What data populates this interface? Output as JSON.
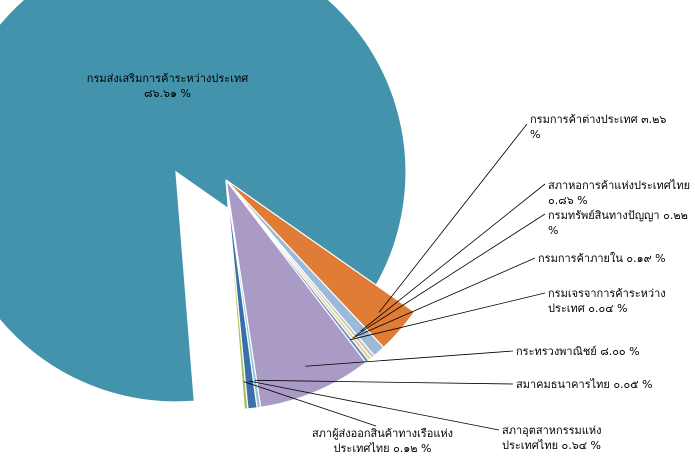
{
  "chart_data": {
    "type": "pie",
    "title": "",
    "exploded": true,
    "slices": [
      {
        "label": "กรมส่งเสริมการค้าระหว่างประเทศ",
        "value": 86.61,
        "value_text": "๘๖.๖๑ %",
        "color": "#4393AC"
      },
      {
        "label": "กรมการค้าต่างประเทศ",
        "value": 3.26,
        "value_text": "๓.๒๖ %",
        "color": "#E07C35"
      },
      {
        "label": "สภาหอการค้าแห่งประเทศไทย",
        "value": 0.86,
        "value_text": "๐.๘๖ %",
        "color": "#9CB9DA"
      },
      {
        "label": "กรมทรัพย์สินทางปัญญา",
        "value": 0.22,
        "value_text": "๐.๒๒ %",
        "color": "#C4C4C4"
      },
      {
        "label": "กรมการค้าภายใน",
        "value": 0.19,
        "value_text": "๐.๑๙ %",
        "color": "#E4D28C"
      },
      {
        "label": "กรมเจรจาการค้าระหว่างประเทศ",
        "value": 0.04,
        "value_text": "๐.๐๔ %",
        "color": "#6F8FBF"
      },
      {
        "label": "กระทรวงพาณิชย์",
        "value": 8.0,
        "value_text": "๘.๐๐ %",
        "color": "#A99BC6"
      },
      {
        "label": "สมาคมธนาคารไทย",
        "value": 0.05,
        "value_text": "๐.๐๕ %",
        "color": "#8FC4D8"
      },
      {
        "label": "สภาอุตสาหกรรมแห่งประเทศไทย",
        "value": 0.64,
        "value_text": "๐.๖๔ %",
        "color": "#3A6FA9"
      },
      {
        "label": "สภาผู้ส่งออกสินค้าทางเรือแห่งประเทศไทย",
        "value": 0.12,
        "value_text": "๐.๑๒ %",
        "color": "#A9C25A"
      }
    ]
  }
}
